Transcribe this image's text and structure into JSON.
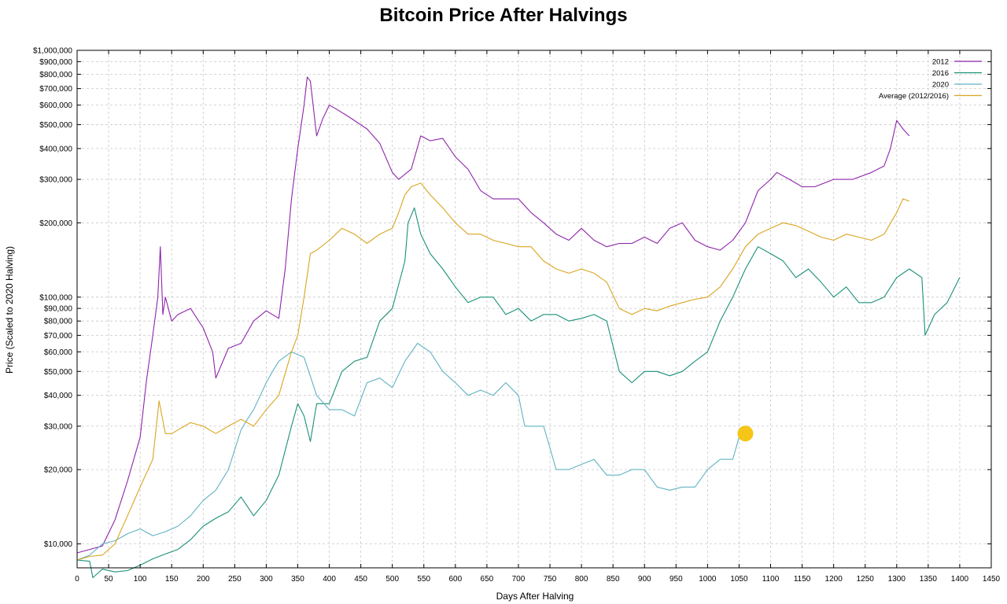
{
  "chart_data": {
    "type": "line",
    "title": "Bitcoin Price After Halvings",
    "xlabel": "Days After Halving",
    "ylabel": "Price (Scaled to 2020 Halving)",
    "y_scale": "log",
    "xlim": [
      0,
      1450
    ],
    "ylim": [
      8000,
      1000000
    ],
    "grid": true,
    "grid_style": "dashed",
    "legend_position": "top-right",
    "x_ticks": [
      0,
      50,
      100,
      150,
      200,
      250,
      300,
      350,
      400,
      450,
      500,
      550,
      600,
      650,
      700,
      750,
      800,
      850,
      900,
      950,
      1000,
      1050,
      1100,
      1150,
      1200,
      1250,
      1300,
      1350,
      1400,
      1450
    ],
    "y_ticks": [
      {
        "value": 10000,
        "label": "$10,000"
      },
      {
        "value": 20000,
        "label": "$20,000"
      },
      {
        "value": 30000,
        "label": "$30,000"
      },
      {
        "value": 40000,
        "label": "$40,000"
      },
      {
        "value": 50000,
        "label": "$50,000"
      },
      {
        "value": 60000,
        "label": "$60,000"
      },
      {
        "value": 70000,
        "label": "$70,000"
      },
      {
        "value": 80000,
        "label": "$80,000"
      },
      {
        "value": 90000,
        "label": "$90,000"
      },
      {
        "value": 100000,
        "label": "$100,000"
      },
      {
        "value": 200000,
        "label": "$200,000"
      },
      {
        "value": 300000,
        "label": "$300,000"
      },
      {
        "value": 400000,
        "label": "$400,000"
      },
      {
        "value": 500000,
        "label": "$500,000"
      },
      {
        "value": 600000,
        "label": "$600,000"
      },
      {
        "value": 700000,
        "label": "$700,000"
      },
      {
        "value": 800000,
        "label": "$800,000"
      },
      {
        "value": 900000,
        "label": "$900,000"
      },
      {
        "value": 1000000,
        "label": "$1,000,000"
      }
    ],
    "series": [
      {
        "name": "2012",
        "color": "#8e24aa",
        "x": [
          0,
          20,
          40,
          60,
          80,
          100,
          110,
          120,
          128,
          132,
          136,
          140,
          150,
          160,
          180,
          200,
          215,
          220,
          240,
          260,
          280,
          300,
          320,
          330,
          340,
          350,
          360,
          365,
          370,
          380,
          390,
          400,
          410,
          430,
          460,
          480,
          500,
          510,
          530,
          545,
          560,
          580,
          600,
          620,
          640,
          660,
          680,
          700,
          720,
          740,
          760,
          780,
          800,
          820,
          840,
          860,
          880,
          900,
          920,
          940,
          960,
          980,
          1000,
          1020,
          1040,
          1060,
          1080,
          1100,
          1110,
          1130,
          1150,
          1170,
          1200,
          1230,
          1260,
          1280,
          1290,
          1300,
          1310,
          1320
        ],
        "values": [
          9200,
          9500,
          9800,
          12500,
          18000,
          27000,
          46000,
          70000,
          100000,
          160000,
          85000,
          100000,
          80000,
          85000,
          90000,
          75000,
          60000,
          47000,
          62000,
          65000,
          80000,
          88000,
          82000,
          130000,
          250000,
          400000,
          600000,
          780000,
          750000,
          450000,
          530000,
          600000,
          580000,
          540000,
          480000,
          420000,
          320000,
          300000,
          330000,
          450000,
          430000,
          440000,
          370000,
          330000,
          270000,
          250000,
          250000,
          250000,
          220000,
          200000,
          180000,
          170000,
          190000,
          170000,
          160000,
          165000,
          165000,
          175000,
          165000,
          190000,
          200000,
          170000,
          160000,
          155000,
          170000,
          200000,
          270000,
          300000,
          320000,
          300000,
          280000,
          280000,
          300000,
          300000,
          320000,
          340000,
          400000,
          520000,
          480000,
          450000
        ]
      },
      {
        "name": "2016",
        "color": "#1a9078",
        "x": [
          0,
          20,
          25,
          40,
          60,
          80,
          100,
          120,
          140,
          160,
          180,
          200,
          220,
          240,
          260,
          280,
          300,
          320,
          340,
          350,
          360,
          370,
          380,
          400,
          420,
          440,
          460,
          480,
          500,
          520,
          525,
          535,
          545,
          560,
          580,
          600,
          620,
          640,
          660,
          680,
          700,
          720,
          740,
          760,
          780,
          800,
          820,
          840,
          860,
          880,
          900,
          920,
          940,
          960,
          980,
          1000,
          1020,
          1040,
          1060,
          1080,
          1100,
          1120,
          1140,
          1160,
          1180,
          1200,
          1220,
          1240,
          1260,
          1280,
          1300,
          1320,
          1340,
          1345,
          1360,
          1380,
          1400
        ],
        "values": [
          8600,
          8500,
          7300,
          7900,
          7700,
          7800,
          8200,
          8700,
          9100,
          9500,
          10400,
          11800,
          12700,
          13500,
          15500,
          13000,
          15000,
          19000,
          30000,
          37000,
          33000,
          26000,
          37000,
          37000,
          50000,
          55000,
          57000,
          80000,
          90000,
          140000,
          200000,
          230000,
          180000,
          150000,
          130000,
          110000,
          95000,
          100000,
          100000,
          85000,
          90000,
          80000,
          85000,
          85000,
          80000,
          82000,
          85000,
          80000,
          50000,
          45000,
          50000,
          50000,
          48000,
          50000,
          55000,
          60000,
          80000,
          100000,
          130000,
          160000,
          150000,
          140000,
          120000,
          130000,
          115000,
          100000,
          110000,
          95000,
          95000,
          100000,
          120000,
          130000,
          120000,
          70000,
          85000,
          95000,
          120000
        ]
      },
      {
        "name": "2020",
        "color": "#5fb3c2",
        "x": [
          0,
          20,
          40,
          60,
          80,
          100,
          120,
          140,
          160,
          180,
          200,
          220,
          240,
          260,
          270,
          280,
          300,
          310,
          320,
          340,
          360,
          380,
          400,
          420,
          440,
          460,
          480,
          500,
          520,
          540,
          560,
          580,
          600,
          620,
          640,
          660,
          680,
          700,
          710,
          720,
          740,
          760,
          780,
          800,
          820,
          840,
          860,
          880,
          900,
          920,
          940,
          960,
          980,
          1000,
          1020,
          1040,
          1050,
          1055
        ],
        "values": [
          8600,
          9000,
          10000,
          10300,
          11000,
          11500,
          10800,
          11200,
          11800,
          13000,
          15000,
          16500,
          20000,
          29000,
          32000,
          35000,
          45000,
          50000,
          55000,
          60000,
          57000,
          40000,
          35000,
          35000,
          33000,
          45000,
          47000,
          43000,
          55000,
          65000,
          60000,
          50000,
          45000,
          40000,
          42000,
          40000,
          45000,
          40000,
          30000,
          30000,
          30000,
          20000,
          20000,
          21000,
          22000,
          19000,
          19000,
          20000,
          20000,
          17000,
          16500,
          17000,
          17000,
          20000,
          22000,
          22000,
          27000,
          28000
        ]
      },
      {
        "name": "Average (2012/2016)",
        "color": "#d9a520",
        "x": [
          0,
          20,
          40,
          60,
          80,
          100,
          120,
          130,
          140,
          150,
          180,
          200,
          220,
          240,
          260,
          280,
          300,
          320,
          340,
          350,
          360,
          370,
          380,
          400,
          420,
          440,
          460,
          480,
          500,
          510,
          520,
          530,
          545,
          560,
          580,
          600,
          620,
          640,
          660,
          680,
          700,
          720,
          740,
          760,
          780,
          800,
          820,
          840,
          860,
          880,
          900,
          920,
          940,
          960,
          980,
          1000,
          1020,
          1040,
          1060,
          1080,
          1100,
          1120,
          1140,
          1160,
          1180,
          1200,
          1220,
          1240,
          1260,
          1280,
          1300,
          1310,
          1320
        ],
        "values": [
          8600,
          8900,
          9000,
          10000,
          13000,
          17000,
          22000,
          38000,
          28000,
          28000,
          31000,
          30000,
          28000,
          30000,
          32000,
          30000,
          35000,
          40000,
          60000,
          70000,
          100000,
          150000,
          155000,
          170000,
          190000,
          180000,
          165000,
          180000,
          190000,
          220000,
          260000,
          280000,
          290000,
          260000,
          230000,
          200000,
          180000,
          180000,
          170000,
          165000,
          160000,
          160000,
          140000,
          130000,
          125000,
          130000,
          125000,
          115000,
          90000,
          85000,
          90000,
          88000,
          92000,
          95000,
          98000,
          100000,
          110000,
          130000,
          160000,
          180000,
          190000,
          200000,
          195000,
          185000,
          175000,
          170000,
          180000,
          175000,
          170000,
          180000,
          220000,
          250000,
          245000
        ]
      }
    ],
    "highlight_point": {
      "x": 1060,
      "y": 28000,
      "color": "#f5c518"
    }
  }
}
